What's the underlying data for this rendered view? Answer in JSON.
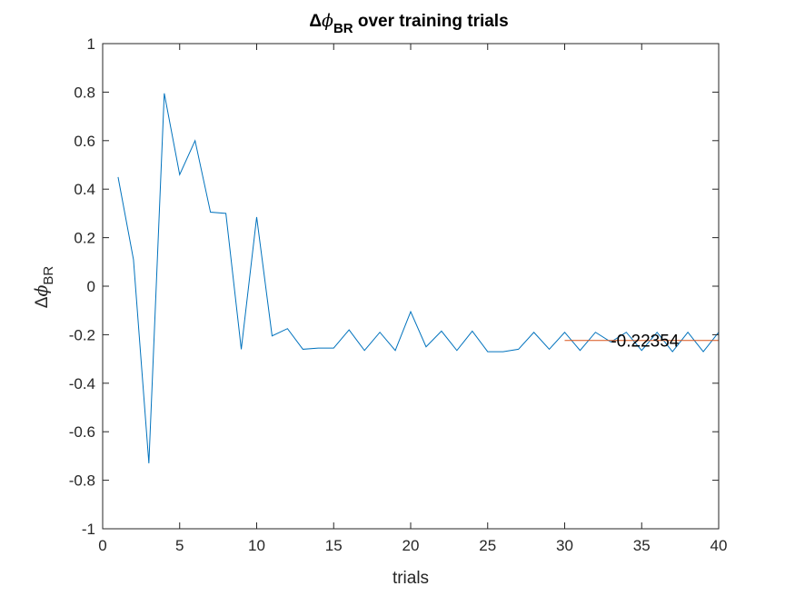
{
  "chart_data": {
    "type": "line",
    "title": {
      "prefix": "Δ",
      "symbol": "ϕ",
      "subscript": "BR",
      "suffix": " over training trials"
    },
    "xlabel": "trials",
    "ylabel": {
      "prefix": "Δ",
      "symbol": "ϕ",
      "subscript": "BR"
    },
    "xlim": [
      0,
      40
    ],
    "ylim": [
      -1,
      1
    ],
    "xticks": [
      0,
      5,
      10,
      15,
      20,
      25,
      30,
      35,
      40
    ],
    "yticks": [
      -1,
      -0.8,
      -0.6,
      -0.4,
      -0.2,
      0,
      0.2,
      0.4,
      0.6,
      0.8,
      1
    ],
    "xtick_labels": [
      "0",
      "5",
      "10",
      "15",
      "20",
      "25",
      "30",
      "35",
      "40"
    ],
    "ytick_labels": [
      "-1",
      "-0.8",
      "-0.6",
      "-0.4",
      "-0.2",
      "0",
      "0.2",
      "0.4",
      "0.6",
      "0.8",
      "1"
    ],
    "grid": false,
    "series": [
      {
        "color": "#0072BD",
        "x": [
          1,
          2,
          3,
          4,
          5,
          6,
          7,
          8,
          9,
          10,
          11,
          12,
          13,
          14,
          15,
          16,
          17,
          18,
          19,
          20,
          21,
          22,
          23,
          24,
          25,
          26,
          27,
          28,
          29,
          30,
          31,
          32,
          33,
          34,
          35,
          36,
          37,
          38,
          39,
          40
        ],
        "y": [
          0.45,
          0.11,
          -0.73,
          0.795,
          0.46,
          0.6,
          0.305,
          0.3,
          -0.26,
          0.285,
          -0.205,
          -0.175,
          -0.26,
          -0.255,
          -0.255,
          -0.18,
          -0.265,
          -0.19,
          -0.265,
          -0.105,
          -0.25,
          -0.185,
          -0.265,
          -0.185,
          -0.27,
          -0.27,
          -0.26,
          -0.19,
          -0.26,
          -0.19,
          -0.265,
          -0.19,
          -0.23,
          -0.19,
          -0.265,
          -0.19,
          -0.27,
          -0.19,
          -0.27,
          -0.19
        ]
      },
      {
        "color": "#D95319",
        "x": [
          30,
          40
        ],
        "y": [
          -0.22354,
          -0.22354
        ]
      }
    ],
    "annotations": [
      {
        "text": "-0.22354",
        "x": 33.0,
        "y": -0.22354
      }
    ]
  }
}
